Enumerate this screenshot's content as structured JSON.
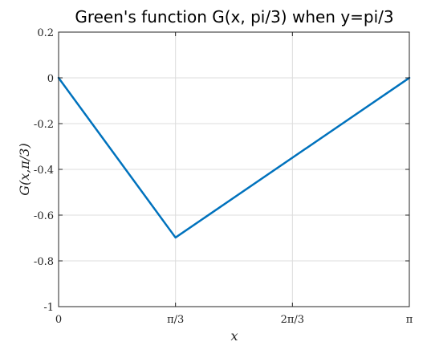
{
  "chart_data": {
    "type": "line",
    "title": "Green's function G(x, pi/3) when y=pi/3",
    "xlabel": "x",
    "ylabel": "G(x,π/3)",
    "xlim": [
      0,
      3.14159
    ],
    "ylim": [
      -1,
      0.2
    ],
    "x_ticks": [
      {
        "value": 0,
        "label": "0"
      },
      {
        "value": 1.0472,
        "label": "π/3"
      },
      {
        "value": 2.0944,
        "label": "2π/3"
      },
      {
        "value": 3.14159,
        "label": "π"
      }
    ],
    "y_ticks": [
      {
        "value": 0.2,
        "label": "0.2"
      },
      {
        "value": 0,
        "label": "0"
      },
      {
        "value": -0.2,
        "label": "-0.2"
      },
      {
        "value": -0.4,
        "label": "-0.4"
      },
      {
        "value": -0.6,
        "label": "-0.6"
      },
      {
        "value": -0.8,
        "label": "-0.8"
      },
      {
        "value": -1,
        "label": "-1"
      }
    ],
    "grid": true,
    "series": [
      {
        "color": "#0072BD",
        "x": [
          0,
          1.0472,
          3.14159
        ],
        "y": [
          0,
          -0.698,
          0
        ]
      }
    ]
  }
}
